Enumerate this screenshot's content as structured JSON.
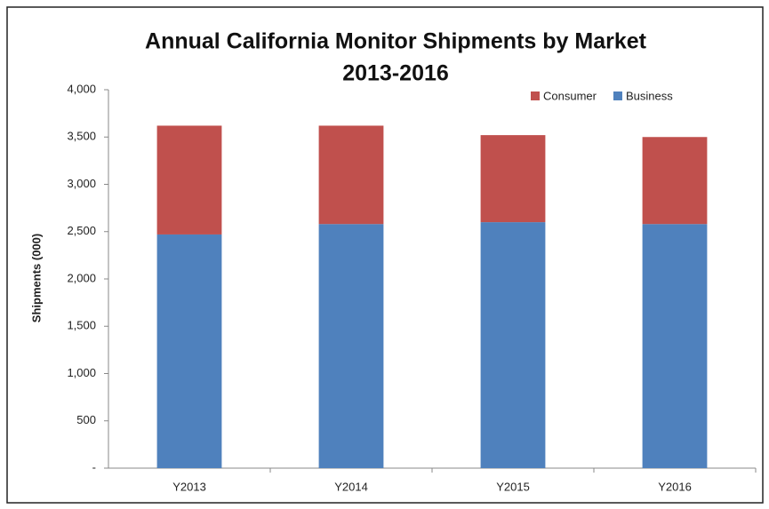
{
  "chart_data": {
    "type": "stacked_bar",
    "title": [
      "Annual California Monitor Shipments by Market",
      "2013-2016"
    ],
    "y_label": "Shipments (000)",
    "categories": [
      "Y2013",
      "Y2014",
      "Y2015",
      "Y2016"
    ],
    "series": [
      {
        "name": "Business",
        "color": "#4f81bd",
        "values": [
          2470,
          2580,
          2600,
          2580
        ]
      },
      {
        "name": "Consumer",
        "color": "#c0504d",
        "values": [
          1150,
          1040,
          920,
          920
        ]
      }
    ],
    "ylim": [
      0,
      4000
    ],
    "yticks": [
      {
        "value": 0,
        "label": "-"
      },
      500,
      {
        "value": 1000,
        "label": "1,000"
      },
      {
        "value": 1500,
        "label": "1,500"
      },
      {
        "value": 2000,
        "label": "2,000"
      },
      {
        "value": 2500,
        "label": "2,500"
      },
      {
        "value": 3000,
        "label": "3,000"
      },
      {
        "value": 3500,
        "label": "3,500"
      },
      {
        "value": 4000,
        "label": "4,000"
      }
    ],
    "legend": "top-right"
  }
}
